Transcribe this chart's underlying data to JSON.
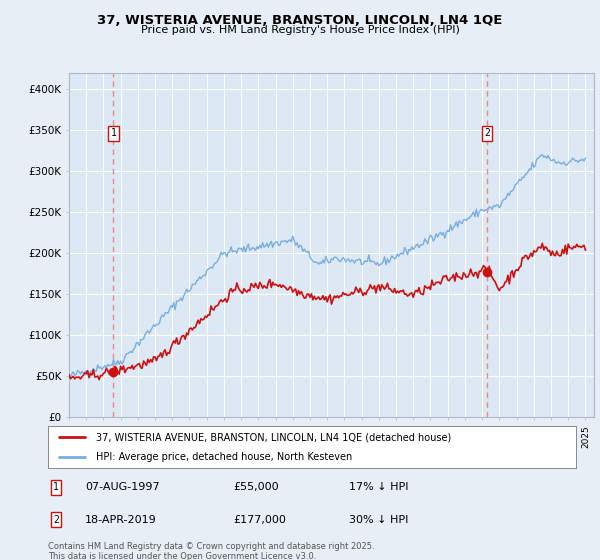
{
  "title_line1": "37, WISTERIA AVENUE, BRANSTON, LINCOLN, LN4 1QE",
  "title_line2": "Price paid vs. HM Land Registry's House Price Index (HPI)",
  "background_color": "#e8eef5",
  "plot_bg_color": "#dce8f4",
  "legend_label1": "37, WISTERIA AVENUE, BRANSTON, LINCOLN, LN4 1QE (detached house)",
  "legend_label2": "HPI: Average price, detached house, North Kesteven",
  "marker1_date": "07-AUG-1997",
  "marker1_price": "£55,000",
  "marker1_hpi": "17% ↓ HPI",
  "marker2_date": "18-APR-2019",
  "marker2_price": "£177,000",
  "marker2_hpi": "30% ↓ HPI",
  "footnote": "Contains HM Land Registry data © Crown copyright and database right 2025.\nThis data is licensed under the Open Government Licence v3.0.",
  "line1_color": "#cc1111",
  "line2_color": "#7aadde",
  "marker_line_color": "#ee8888",
  "yticks": [
    0,
    50000,
    100000,
    150000,
    200000,
    250000,
    300000,
    350000,
    400000
  ],
  "ytick_labels": [
    "£0",
    "£50K",
    "£100K",
    "£150K",
    "£200K",
    "£250K",
    "£300K",
    "£350K",
    "£400K"
  ],
  "xmin": 1995.0,
  "xmax": 2025.5,
  "ymin": 0,
  "ymax": 420000,
  "marker1_x": 1997.58,
  "marker2_x": 2019.28,
  "marker1_y": 55000,
  "marker2_y": 177000
}
